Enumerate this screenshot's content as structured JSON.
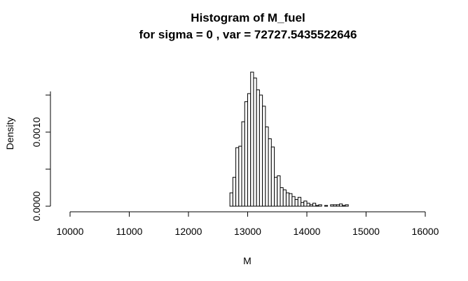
{
  "chart_data": {
    "type": "bar",
    "title": "Histogram of M_fuel",
    "subtitle": "for sigma = 0 , var = 72727.5435522646",
    "xlabel": "M",
    "ylabel": "Density",
    "xlim": [
      10000,
      16000
    ],
    "ylim": [
      0,
      0.0017
    ],
    "x_ticks": [
      10000,
      11000,
      12000,
      13000,
      14000,
      15000,
      16000
    ],
    "y_ticks": [
      0.0,
      0.001
    ],
    "y_tick_labels": [
      "0.0000",
      "0.0010"
    ],
    "bin_width": 50,
    "bins": [
      {
        "start": 12700,
        "end": 12750,
        "density": 0.00018
      },
      {
        "start": 12750,
        "end": 12800,
        "density": 0.00039
      },
      {
        "start": 12800,
        "end": 12850,
        "density": 0.00079
      },
      {
        "start": 12850,
        "end": 12900,
        "density": 0.00081
      },
      {
        "start": 12900,
        "end": 12950,
        "density": 0.00114
      },
      {
        "start": 12950,
        "end": 13000,
        "density": 0.00141
      },
      {
        "start": 13000,
        "end": 13050,
        "density": 0.00152
      },
      {
        "start": 13050,
        "end": 13100,
        "density": 0.00181
      },
      {
        "start": 13100,
        "end": 13150,
        "density": 0.00173
      },
      {
        "start": 13150,
        "end": 13200,
        "density": 0.00157
      },
      {
        "start": 13200,
        "end": 13250,
        "density": 0.0015
      },
      {
        "start": 13250,
        "end": 13300,
        "density": 0.00135
      },
      {
        "start": 13300,
        "end": 13350,
        "density": 0.00107
      },
      {
        "start": 13350,
        "end": 13400,
        "density": 0.00091
      },
      {
        "start": 13400,
        "end": 13450,
        "density": 0.0008
      },
      {
        "start": 13450,
        "end": 13500,
        "density": 0.00039
      },
      {
        "start": 13500,
        "end": 13550,
        "density": 0.00041
      },
      {
        "start": 13550,
        "end": 13600,
        "density": 0.00025
      },
      {
        "start": 13600,
        "end": 13650,
        "density": 0.00022
      },
      {
        "start": 13650,
        "end": 13700,
        "density": 0.00018
      },
      {
        "start": 13700,
        "end": 13750,
        "density": 0.00017
      },
      {
        "start": 13750,
        "end": 13800,
        "density": 0.00013
      },
      {
        "start": 13800,
        "end": 13850,
        "density": 9e-05
      },
      {
        "start": 13850,
        "end": 13900,
        "density": 0.00012
      },
      {
        "start": 13900,
        "end": 13950,
        "density": 5e-05
      },
      {
        "start": 13950,
        "end": 14000,
        "density": 7e-05
      },
      {
        "start": 14000,
        "end": 14050,
        "density": 4e-05
      },
      {
        "start": 14050,
        "end": 14100,
        "density": 2e-05
      },
      {
        "start": 14100,
        "end": 14150,
        "density": 4e-05
      },
      {
        "start": 14150,
        "end": 14200,
        "density": 1e-05
      },
      {
        "start": 14200,
        "end": 14250,
        "density": 2e-05
      },
      {
        "start": 14250,
        "end": 14300,
        "density": 0.0
      },
      {
        "start": 14300,
        "end": 14350,
        "density": 1e-05
      },
      {
        "start": 14350,
        "end": 14400,
        "density": 0.0
      },
      {
        "start": 14400,
        "end": 14450,
        "density": 2e-05
      },
      {
        "start": 14450,
        "end": 14500,
        "density": 2e-05
      },
      {
        "start": 14500,
        "end": 14550,
        "density": 2e-05
      },
      {
        "start": 14550,
        "end": 14600,
        "density": 3e-05
      },
      {
        "start": 14600,
        "end": 14650,
        "density": 1e-05
      },
      {
        "start": 14650,
        "end": 14700,
        "density": 2e-05
      }
    ]
  }
}
